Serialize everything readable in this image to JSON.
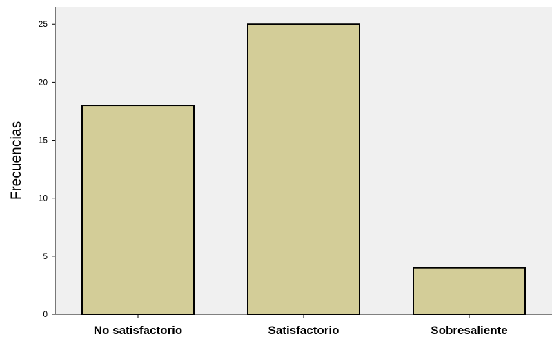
{
  "chart_data": {
    "type": "bar",
    "categories": [
      "No satisfactorio",
      "Satisfactorio",
      "Sobresaliente"
    ],
    "values": [
      18,
      25,
      4
    ],
    "ylabel": "Frecuencias",
    "xlabel": "",
    "ylim": [
      0,
      26.5
    ],
    "yticks": [
      0,
      5,
      10,
      15,
      20,
      25
    ],
    "grid": false,
    "colors": {
      "bar_fill": "#d3cd98",
      "bar_stroke": "#000000",
      "plot_background": "#f0f0f0"
    }
  }
}
